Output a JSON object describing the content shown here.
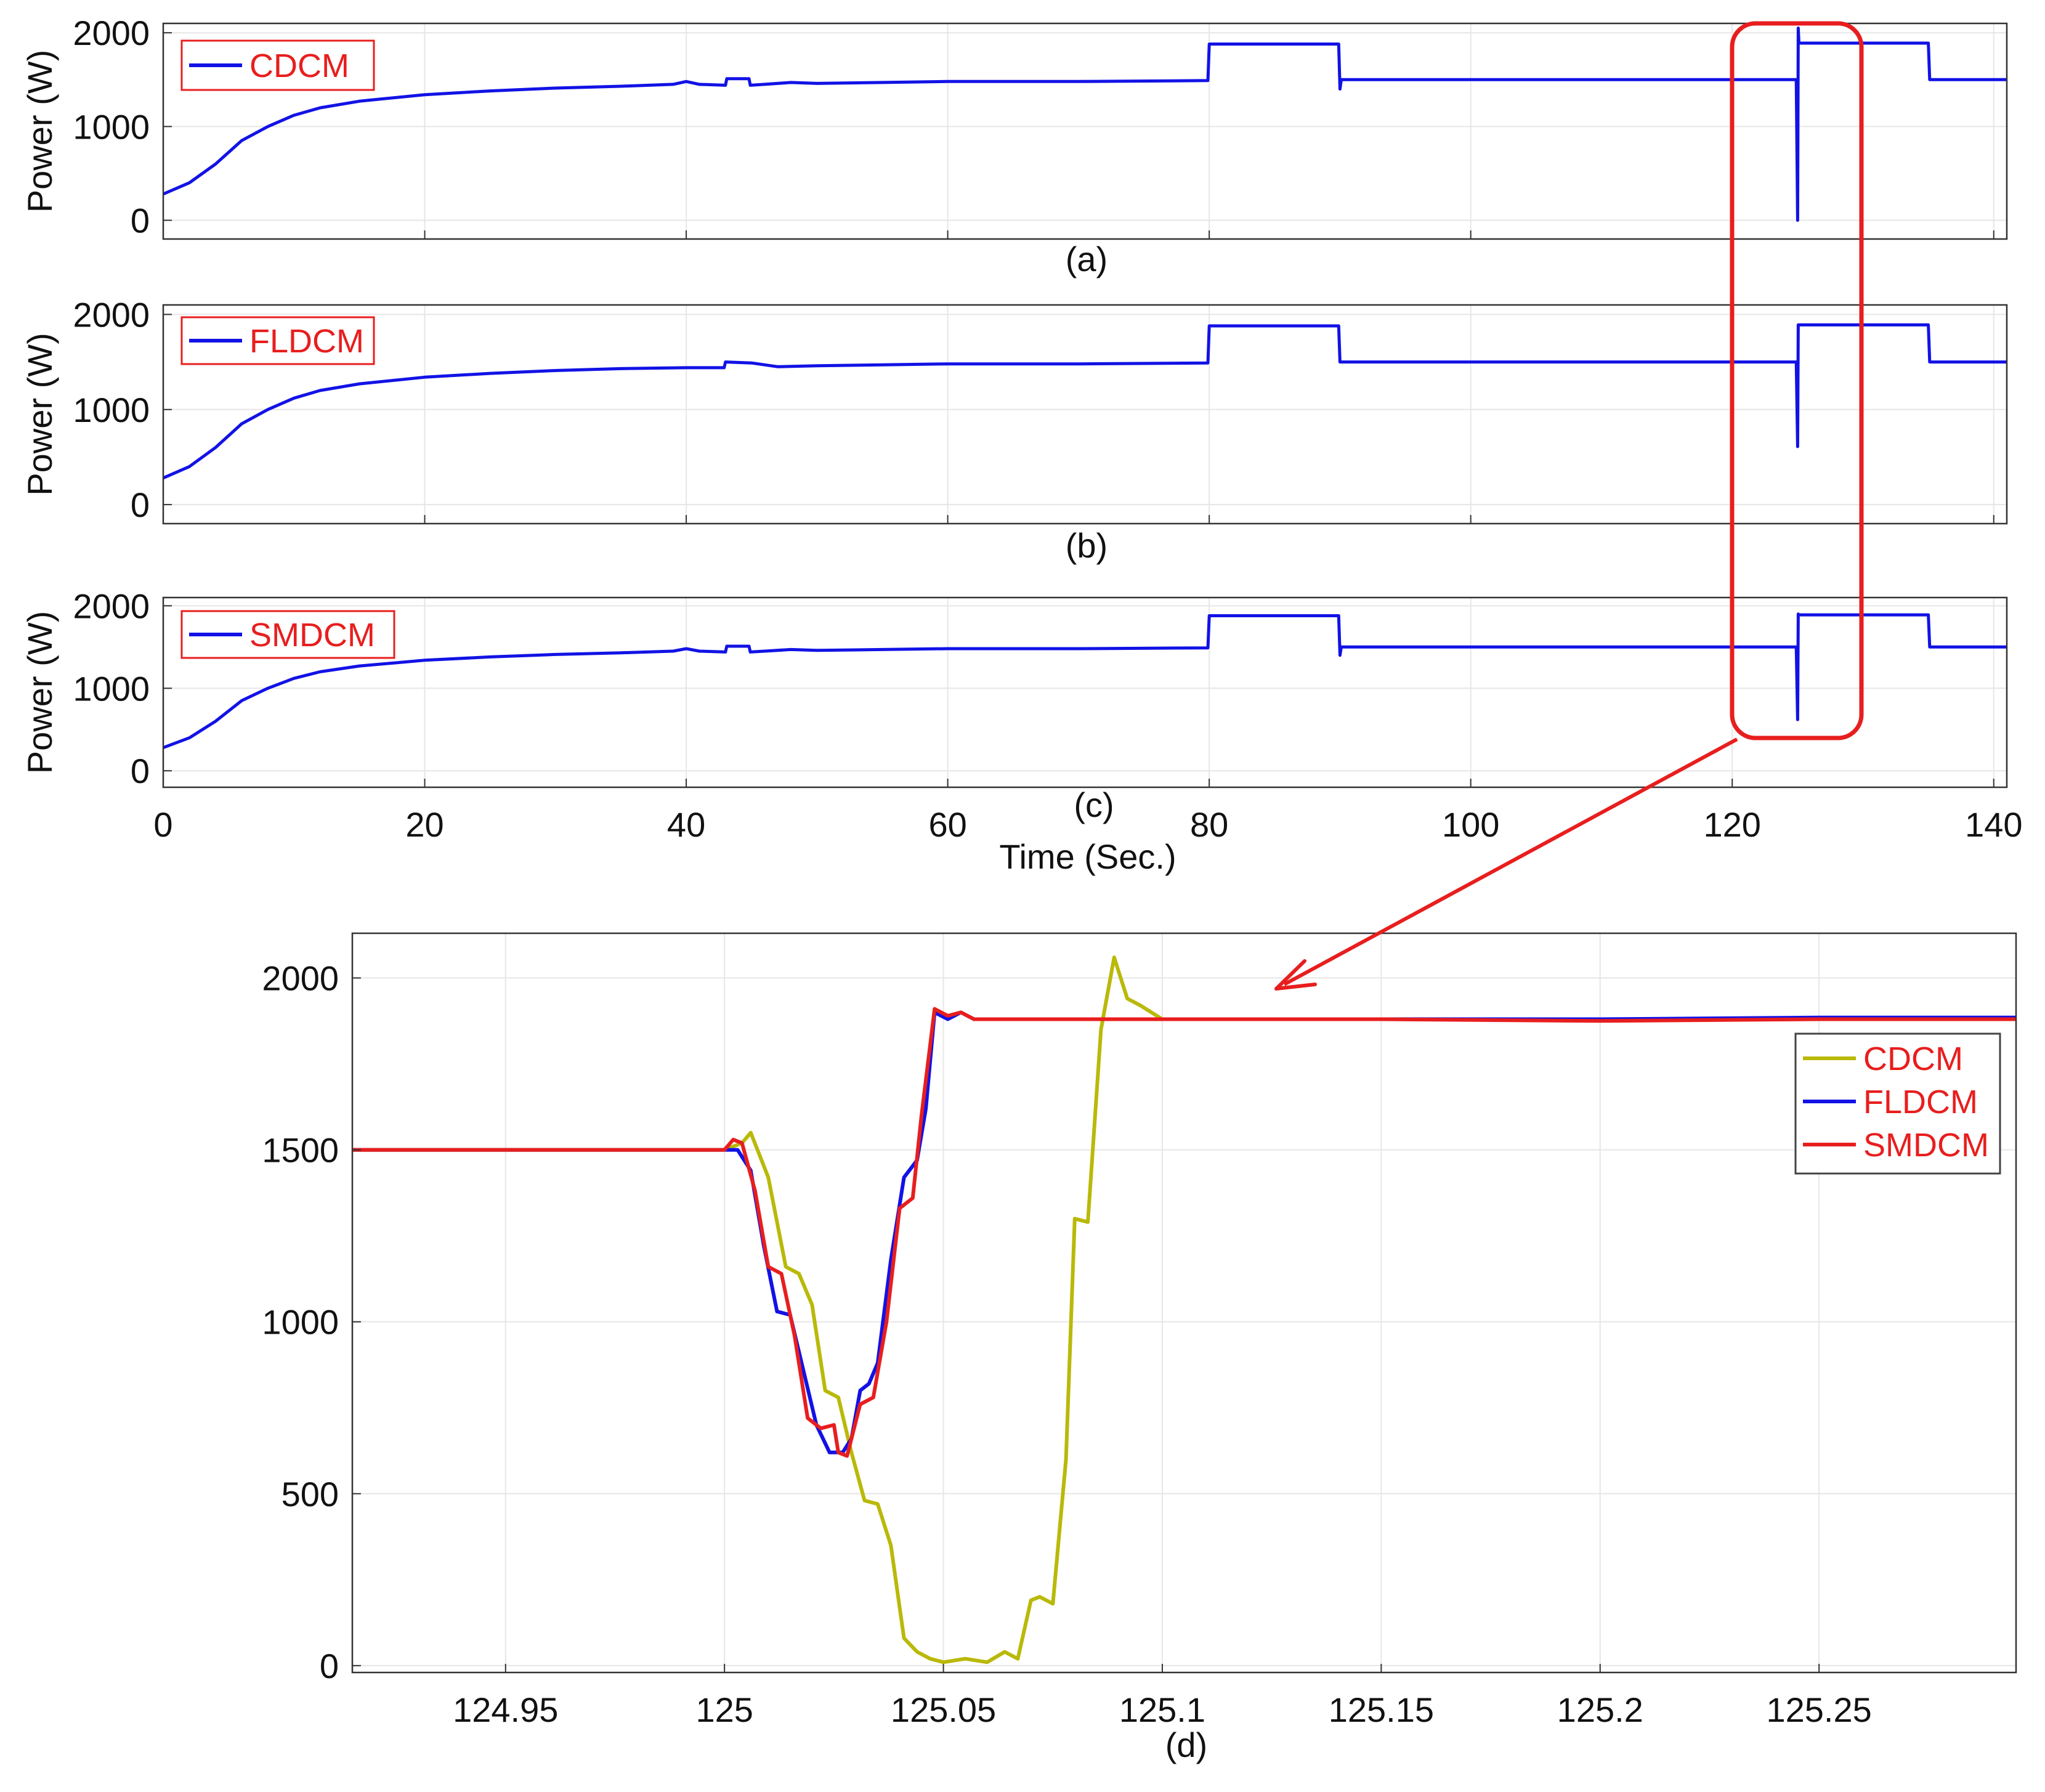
{
  "colors": {
    "blue": "#1212e6",
    "red": "#e81e1e",
    "olive": "#b9b90a",
    "grid": "#e6e6e6",
    "axis": "#333333",
    "highlight": "#e81e1e"
  },
  "top_xlabel": "Time (Sec.)",
  "chart_data": [
    {
      "type": "line",
      "panel": "(a)",
      "caption": "(a)",
      "ylabel": "Power (W)",
      "xlim": [
        0,
        141
      ],
      "ylim": [
        -200,
        2100
      ],
      "xticks": [
        0,
        20,
        40,
        60,
        80,
        100,
        120,
        140
      ],
      "xtick_labels": [
        "",
        "",
        "",
        "",
        "",
        "",
        "",
        ""
      ],
      "yticks": [
        0,
        1000,
        2000
      ],
      "ytick_labels": [
        "0",
        "1000",
        "2000"
      ],
      "grid": true,
      "legend_position": "top-left",
      "series": [
        {
          "name": "CDCM",
          "color": "#1212e6",
          "x": [
            0,
            2,
            4,
            6,
            8,
            10,
            12,
            15,
            20,
            25,
            30,
            35,
            39,
            40,
            41,
            43,
            43.1,
            44.8,
            44.9,
            46,
            48,
            50,
            55,
            60,
            70,
            79.9,
            80,
            89.9,
            90,
            90.1,
            100,
            110,
            124.9,
            125,
            125.05,
            125.1,
            135,
            135.1,
            141
          ],
          "y": [
            280,
            400,
            600,
            850,
            1000,
            1120,
            1200,
            1270,
            1340,
            1380,
            1410,
            1430,
            1450,
            1480,
            1450,
            1440,
            1510,
            1510,
            1440,
            1450,
            1470,
            1460,
            1470,
            1480,
            1480,
            1490,
            1880,
            1880,
            1400,
            1500,
            1500,
            1500,
            1500,
            0,
            2050,
            1890,
            1890,
            1500,
            1500
          ]
        }
      ]
    },
    {
      "type": "line",
      "panel": "(b)",
      "caption": "(b)",
      "ylabel": "Power (W)",
      "xlim": [
        0,
        141
      ],
      "ylim": [
        -200,
        2100
      ],
      "xticks": [
        0,
        20,
        40,
        60,
        80,
        100,
        120,
        140
      ],
      "xtick_labels": [
        "",
        "",
        "",
        "",
        "",
        "",
        "",
        ""
      ],
      "yticks": [
        0,
        1000,
        2000
      ],
      "ytick_labels": [
        "0",
        "1000",
        "2000"
      ],
      "grid": true,
      "legend_position": "top-left",
      "series": [
        {
          "name": "FLDCM",
          "color": "#1212e6",
          "x": [
            0,
            2,
            4,
            6,
            8,
            10,
            12,
            15,
            20,
            25,
            30,
            35,
            40,
            42.9,
            43,
            45,
            47,
            50,
            55,
            60,
            70,
            79.9,
            80,
            89.9,
            90,
            100,
            110,
            124.9,
            125,
            125.05,
            125.1,
            135,
            135.1,
            141
          ],
          "y": [
            280,
            400,
            600,
            850,
            1000,
            1120,
            1200,
            1270,
            1340,
            1380,
            1410,
            1430,
            1440,
            1440,
            1500,
            1490,
            1450,
            1460,
            1470,
            1480,
            1480,
            1490,
            1880,
            1880,
            1500,
            1500,
            1500,
            1500,
            610,
            1890,
            1890,
            1890,
            1500,
            1500
          ]
        }
      ]
    },
    {
      "type": "line",
      "panel": "(c)",
      "caption": "(c)",
      "ylabel": "Power (W)",
      "xlabel": "Time (Sec.)",
      "xlim": [
        0,
        141
      ],
      "ylim": [
        -200,
        2100
      ],
      "xticks": [
        0,
        20,
        40,
        60,
        80,
        100,
        120,
        140
      ],
      "xtick_labels": [
        "0",
        "20",
        "40",
        "60",
        "80",
        "100",
        "120",
        "140"
      ],
      "yticks": [
        0,
        1000,
        2000
      ],
      "ytick_labels": [
        "0",
        "1000",
        "2000"
      ],
      "grid": true,
      "legend_position": "top-left",
      "series": [
        {
          "name": "SMDCM",
          "color": "#1212e6",
          "x": [
            0,
            2,
            4,
            6,
            8,
            10,
            12,
            15,
            20,
            25,
            30,
            35,
            39,
            40,
            41,
            43,
            43.1,
            44.8,
            44.9,
            46,
            48,
            50,
            55,
            60,
            70,
            79.9,
            80,
            89.9,
            90,
            90.1,
            100,
            110,
            124.9,
            125,
            125.05,
            125.1,
            135,
            135.1,
            141
          ],
          "y": [
            280,
            400,
            600,
            850,
            1000,
            1120,
            1200,
            1270,
            1340,
            1380,
            1410,
            1430,
            1450,
            1480,
            1450,
            1440,
            1510,
            1510,
            1440,
            1450,
            1470,
            1460,
            1470,
            1480,
            1480,
            1490,
            1880,
            1880,
            1400,
            1500,
            1500,
            1500,
            1500,
            620,
            1900,
            1890,
            1890,
            1500,
            1500
          ]
        }
      ]
    },
    {
      "type": "line",
      "panel": "(d)",
      "caption": "(d)",
      "ylabel": "",
      "xlim": [
        124.915,
        125.295
      ],
      "ylim": [
        -20,
        2130
      ],
      "xticks": [
        124.95,
        125,
        125.05,
        125.1,
        125.15,
        125.2,
        125.25
      ],
      "xtick_labels": [
        "124.95",
        "125",
        "125.05",
        "125.1",
        "125.15",
        "125.2",
        "125.25"
      ],
      "yticks": [
        0,
        500,
        1000,
        1500,
        2000
      ],
      "ytick_labels": [
        "0",
        "500",
        "1000",
        "1500",
        "2000"
      ],
      "grid": true,
      "legend_position": "right",
      "series": [
        {
          "name": "CDCM",
          "color": "#b9b90a",
          "x": [
            124.915,
            124.95,
            125.0,
            125.004,
            125.006,
            125.01,
            125.014,
            125.017,
            125.02,
            125.023,
            125.026,
            125.029,
            125.032,
            125.035,
            125.038,
            125.041,
            125.044,
            125.047,
            125.05,
            125.055,
            125.06,
            125.064,
            125.067,
            125.07,
            125.072,
            125.075,
            125.078,
            125.08,
            125.083,
            125.086,
            125.089,
            125.092,
            125.095,
            125.1,
            125.15,
            125.2,
            125.25,
            125.295
          ],
          "y": [
            1500,
            1500,
            1500,
            1520,
            1550,
            1420,
            1160,
            1140,
            1050,
            800,
            780,
            620,
            480,
            470,
            350,
            80,
            40,
            20,
            10,
            20,
            10,
            40,
            20,
            190,
            200,
            180,
            600,
            1300,
            1290,
            1850,
            2060,
            1940,
            1920,
            1880,
            1880,
            1880,
            1880,
            1880
          ]
        },
        {
          "name": "FLDCM",
          "color": "#1212e6",
          "x": [
            124.915,
            124.95,
            125.0,
            125.003,
            125.006,
            125.009,
            125.012,
            125.015,
            125.018,
            125.021,
            125.024,
            125.027,
            125.029,
            125.031,
            125.033,
            125.035,
            125.038,
            125.041,
            125.044,
            125.046,
            125.048,
            125.051,
            125.054,
            125.057,
            125.1,
            125.15,
            125.2,
            125.25,
            125.295
          ],
          "y": [
            1500,
            1500,
            1500,
            1500,
            1440,
            1220,
            1030,
            1020,
            860,
            700,
            620,
            620,
            660,
            800,
            820,
            880,
            1180,
            1420,
            1470,
            1620,
            1900,
            1880,
            1900,
            1880,
            1880,
            1880,
            1880,
            1885,
            1885
          ]
        },
        {
          "name": "SMDCM",
          "color": "#e81e1e",
          "x": [
            124.915,
            124.95,
            125.0,
            125.002,
            125.004,
            125.007,
            125.01,
            125.013,
            125.016,
            125.019,
            125.022,
            125.025,
            125.026,
            125.028,
            125.031,
            125.034,
            125.037,
            125.04,
            125.043,
            125.045,
            125.048,
            125.051,
            125.054,
            125.057,
            125.1,
            125.15,
            125.2,
            125.25,
            125.295
          ],
          "y": [
            1500,
            1500,
            1500,
            1530,
            1520,
            1380,
            1160,
            1140,
            960,
            720,
            690,
            700,
            620,
            610,
            760,
            780,
            1000,
            1330,
            1360,
            1600,
            1910,
            1890,
            1900,
            1880,
            1880,
            1880,
            1875,
            1880,
            1880
          ]
        }
      ]
    }
  ]
}
